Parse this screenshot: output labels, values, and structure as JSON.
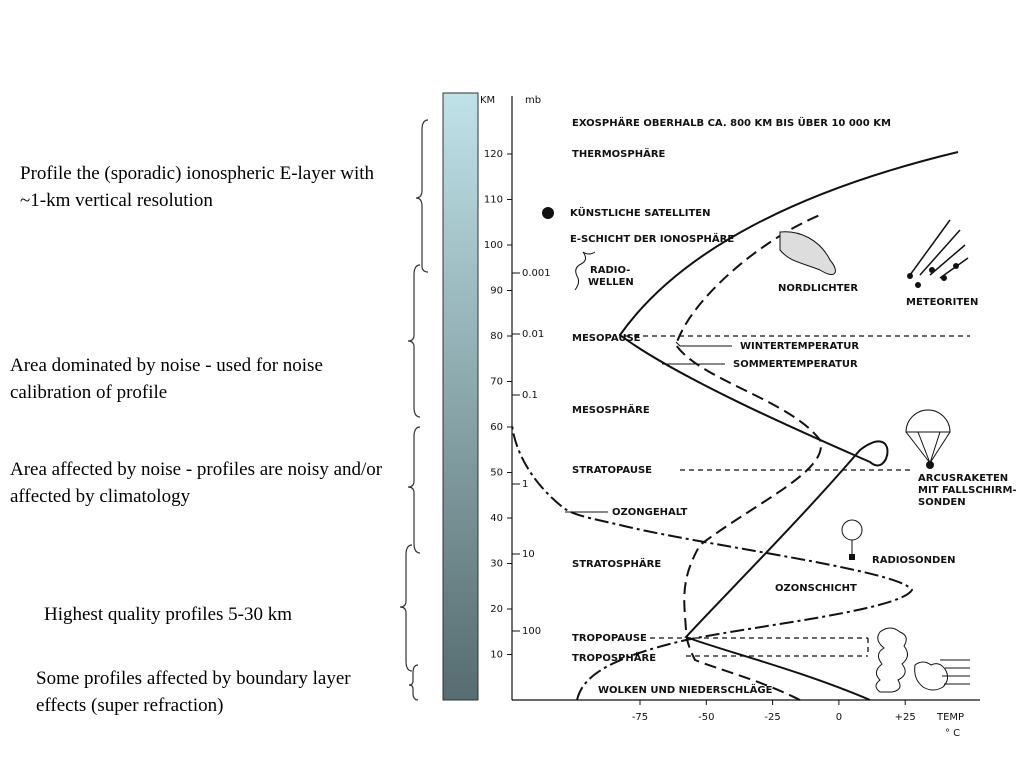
{
  "notes": [
    "Profile the (sporadic) ionospheric E-layer with ~1-km vertical resolution",
    "Area dominated by noise - used for noise calibration of profile",
    "Area affected by noise - profiles are noisy and/or affected by climatology",
    "Highest quality profiles 5-30 km",
    "Some profiles affected by boundary layer effects (super refraction)"
  ],
  "diagram": {
    "km_label": "KM",
    "mb_label": "mb",
    "km_ticks": [
      "120",
      "110",
      "100",
      "90",
      "80",
      "70",
      "60",
      "50",
      "40",
      "30",
      "20",
      "10"
    ],
    "mb_ticks": [
      "0.001",
      "0.01",
      "0.1",
      "1",
      "10",
      "100"
    ],
    "temp_ticks": [
      "-75",
      "-50",
      "-25",
      "0",
      "+25"
    ],
    "temp_label": "TEMP",
    "temp_unit": "° C",
    "labels": [
      "EXOSPHÄRE OBERHALB CA. 800 KM BIS ÜBER 10 000 KM",
      "THERMOSPHÄRE",
      "KÜNSTLICHE SATELLITEN",
      "E-SCHICHT DER IONOSPHÄRE",
      "RADIO-",
      "WELLEN",
      "NORDLICHTER",
      "METEORITEN",
      "MESOPAUSE",
      "WINTERTEMPERATUR",
      "SOMMERTEMPERATUR",
      "MESOSPHÄRE",
      "STRATOPAUSE",
      "ARCUSRAKETEN",
      "MIT FALLSCHIRM-",
      "SONDEN",
      "OZONGEHALT",
      "RADIOSONDEN",
      "STRATOSPHÄRE",
      "OZONSCHICHT",
      "TROPOPAUSE",
      "TROPOSPHÄRE",
      "WOLKEN UND NIEDERSCHLÄGE"
    ]
  }
}
